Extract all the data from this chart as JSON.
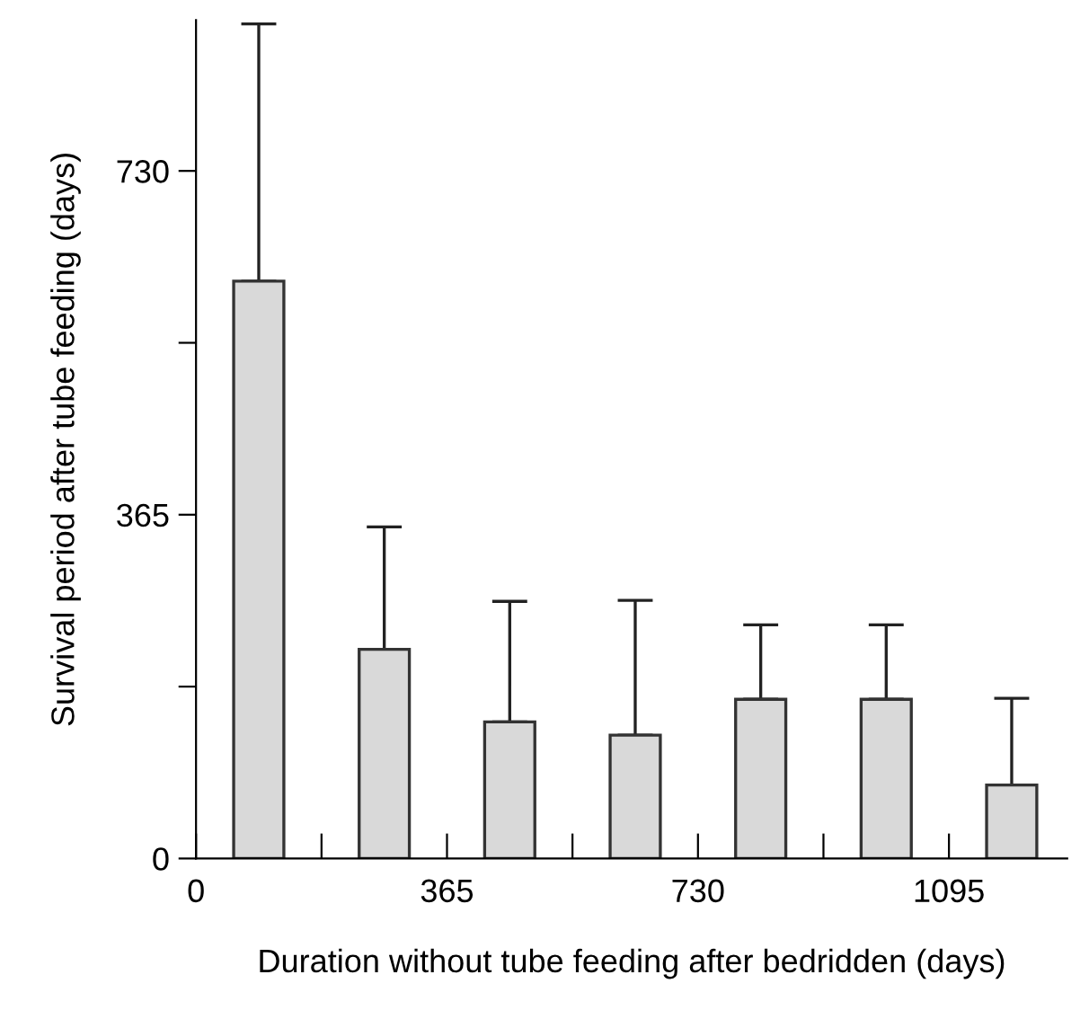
{
  "chart_data": {
    "type": "bar",
    "xlabel": "Duration without tube feeding after bedridden (days)",
    "ylabel": "Survival period after tube feeding (days)",
    "x": [
      91.25,
      273.75,
      456.25,
      638.75,
      821.25,
      1003.75,
      1186.25
    ],
    "values": [
      613,
      222,
      145,
      131,
      169,
      169,
      78
    ],
    "errors": [
      [
        613,
        886
      ],
      [
        222,
        352
      ],
      [
        145,
        273
      ],
      [
        131,
        274
      ],
      [
        169,
        248
      ],
      [
        169,
        248
      ],
      [
        78,
        170
      ]
    ],
    "color": "#d9d9d9",
    "xlim": [
      0,
      1267
    ],
    "ylim": [
      0,
      890
    ],
    "xticks": [
      0,
      {
        "value": 182.5,
        "label": null
      },
      365,
      {
        "value": 547.5,
        "label": null
      },
      730,
      {
        "value": 912.5,
        "label": null
      },
      1095
    ],
    "yticks": [
      0,
      {
        "value": 182.5,
        "label": null
      },
      365,
      {
        "value": 547.5,
        "label": null
      },
      730
    ],
    "grid": false
  }
}
